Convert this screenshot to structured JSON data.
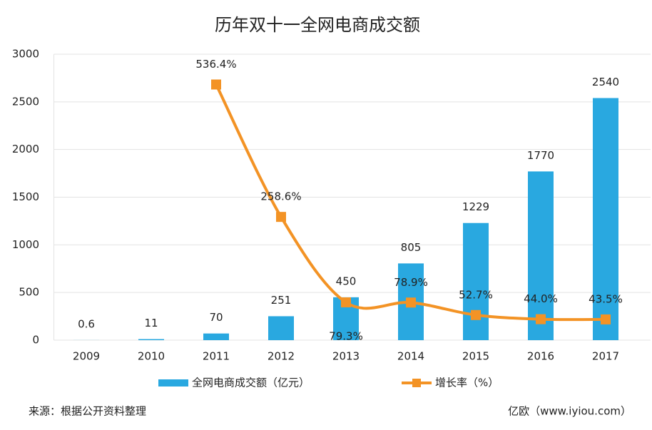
{
  "chart_data": {
    "type": "bar_line",
    "title": "历年双十一全网电商成交额",
    "categories": [
      "2009",
      "2010",
      "2011",
      "2012",
      "2013",
      "2014",
      "2015",
      "2016",
      "2017"
    ],
    "series": [
      {
        "name": "全网电商成交额（亿元）",
        "color": "#29a8e0",
        "type": "bar",
        "values": [
          0.6,
          11,
          70,
          251,
          450,
          805,
          1229,
          1770,
          2540
        ]
      },
      {
        "name": "增长率（%）",
        "color": "#f39325",
        "type": "line",
        "axis": "y2",
        "values": [
          null,
          null,
          536.4,
          258.6,
          79.3,
          78.9,
          52.7,
          44.0,
          43.5
        ],
        "value_labels": [
          null,
          null,
          "536.4%",
          "258.6%",
          "79.3%",
          "78.9%",
          "52.7%",
          "44.0%",
          "43.5%"
        ]
      }
    ],
    "ylim": [
      0,
      3000
    ],
    "yticks": [
      0,
      500,
      1000,
      1500,
      2000,
      2500,
      3000
    ],
    "y2lim": [
      0,
      600
    ],
    "grid": true,
    "legend": "bottom",
    "source": "来源：根据公开资料整理",
    "credit": "亿欧（www.iyiou.com）"
  }
}
